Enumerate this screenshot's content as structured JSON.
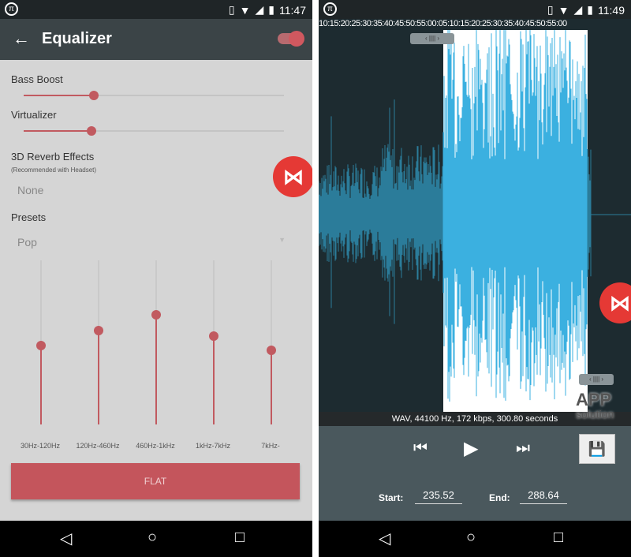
{
  "left": {
    "status": {
      "time": "11:47"
    },
    "title": "Equalizer",
    "enabled": true,
    "bass_boost": {
      "label": "Bass Boost",
      "level": 0.27
    },
    "virtualizer": {
      "label": "Virtualizer",
      "level": 0.26
    },
    "reverb": {
      "label": "3D Reverb Effects",
      "note": "(Recommended with Headset)",
      "value": "None"
    },
    "presets": {
      "label": "Presets",
      "value": "Pop"
    },
    "bands": [
      {
        "label": "30Hz-120Hz",
        "level": 0.48
      },
      {
        "label": "120Hz-460Hz",
        "level": 0.57
      },
      {
        "label": "460Hz-1kHz",
        "level": 0.67
      },
      {
        "label": "1kHz-7kHz",
        "level": 0.54
      },
      {
        "label": "7kHz-",
        "level": 0.45
      }
    ],
    "flat_label": "FLAT"
  },
  "right": {
    "status": {
      "time": "11:49"
    },
    "timeline": "10:15:20:25:30:35:40:45:50:55:00:05:10:15:20:25:30:35:40:45:50:55:00",
    "info": "WAV, 44100 Hz, 172 kbps, 300.80 seconds",
    "start_label": "Start:",
    "start_value": "235.52",
    "end_label": "End:",
    "end_value": "288.64",
    "colors": {
      "wave_unselected": "#2b7c9a",
      "wave_selected": "#3bb0e0",
      "selection_bg": "#ffffff"
    }
  },
  "watermark": {
    "line1": "APP",
    "line2": "solution"
  }
}
